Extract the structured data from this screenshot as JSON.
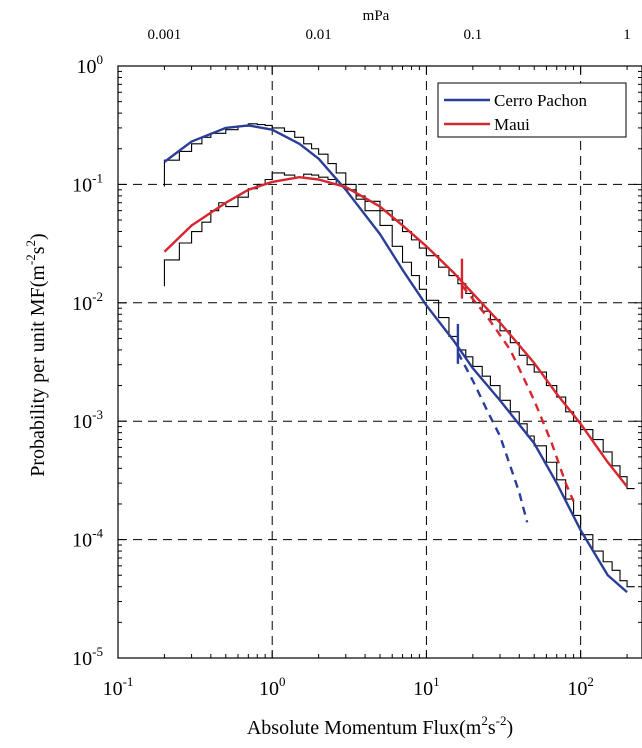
{
  "chart_data": {
    "type": "line",
    "xlabel": "Absolute Momentum Flux(m^2s^-2)",
    "ylabel": "Probability per unit MF(m^-2s^2)",
    "top_axis_label": "mPa",
    "x_scale": "log",
    "y_scale": "log",
    "xlim": [
      0.1,
      250
    ],
    "ylim": [
      1e-05,
      1
    ],
    "grid": "dashed",
    "legend_position": "top-right",
    "x_ticks": [
      {
        "value": 0.1,
        "base": "10",
        "exp": "-1"
      },
      {
        "value": 1,
        "base": "10",
        "exp": "0"
      },
      {
        "value": 10,
        "base": "10",
        "exp": "1"
      },
      {
        "value": 100,
        "base": "10",
        "exp": "2"
      }
    ],
    "y_ticks": [
      {
        "value": 1e-05,
        "base": "10",
        "exp": "-5"
      },
      {
        "value": 0.0001,
        "base": "10",
        "exp": "-4"
      },
      {
        "value": 0.001,
        "base": "10",
        "exp": "-3"
      },
      {
        "value": 0.01,
        "base": "10",
        "exp": "-2"
      },
      {
        "value": 0.1,
        "base": "10",
        "exp": "-1"
      },
      {
        "value": 1,
        "base": "10",
        "exp": "0"
      }
    ],
    "top_ticks": [
      {
        "label": "0.001",
        "value": 0.2
      },
      {
        "label": "0.01",
        "value": 2
      },
      {
        "label": "0.1",
        "value": 20
      },
      {
        "label": "1",
        "value": 200
      }
    ],
    "series": [
      {
        "name": "Cerro Pachon",
        "color": "#2b3e97",
        "fit": [
          [
            0.2,
            0.155
          ],
          [
            0.3,
            0.23
          ],
          [
            0.5,
            0.3
          ],
          [
            0.7,
            0.315
          ],
          [
            1,
            0.29
          ],
          [
            1.5,
            0.22
          ],
          [
            2,
            0.165
          ],
          [
            3,
            0.09
          ],
          [
            5,
            0.038
          ],
          [
            7,
            0.019
          ],
          [
            10,
            0.0095
          ],
          [
            15,
            0.0048
          ],
          [
            20,
            0.0028
          ],
          [
            30,
            0.0015
          ],
          [
            50,
            0.00065
          ],
          [
            70,
            0.0003
          ],
          [
            100,
            0.00012
          ],
          [
            150,
            5e-05
          ],
          [
            200,
            3.6e-05
          ]
        ],
        "dashed_extension": [
          [
            16,
            0.0038
          ],
          [
            20,
            0.0022
          ],
          [
            25,
            0.0012
          ],
          [
            30,
            0.00075
          ],
          [
            40,
            0.00025
          ],
          [
            45,
            0.00014
          ]
        ],
        "marker": [
          16,
          0.0045
        ],
        "histogram": [
          [
            0.2,
            0.16
          ],
          [
            0.25,
            0.19
          ],
          [
            0.3,
            0.22
          ],
          [
            0.35,
            0.25
          ],
          [
            0.4,
            0.27
          ],
          [
            0.5,
            0.29
          ],
          [
            0.6,
            0.31
          ],
          [
            0.7,
            0.325
          ],
          [
            0.8,
            0.32
          ],
          [
            0.9,
            0.315
          ],
          [
            1,
            0.3
          ],
          [
            1.2,
            0.28
          ],
          [
            1.4,
            0.25
          ],
          [
            1.6,
            0.22
          ],
          [
            1.8,
            0.2
          ],
          [
            2,
            0.18
          ],
          [
            2.3,
            0.15
          ],
          [
            2.6,
            0.125
          ],
          [
            3,
            0.1
          ],
          [
            3.5,
            0.075
          ],
          [
            4,
            0.06
          ],
          [
            5,
            0.045
          ],
          [
            6,
            0.03
          ],
          [
            7,
            0.022
          ],
          [
            8,
            0.017
          ],
          [
            9,
            0.013
          ],
          [
            10,
            0.0105
          ],
          [
            12,
            0.0075
          ],
          [
            14,
            0.0052
          ],
          [
            16,
            0.004
          ],
          [
            18,
            0.0035
          ],
          [
            20,
            0.0029
          ],
          [
            23,
            0.0024
          ],
          [
            26,
            0.002
          ],
          [
            30,
            0.0015
          ],
          [
            35,
            0.0012
          ],
          [
            40,
            0.00095
          ],
          [
            45,
            0.00075
          ],
          [
            50,
            0.00062
          ],
          [
            60,
            0.00045
          ],
          [
            70,
            0.00032
          ],
          [
            80,
            0.00022
          ],
          [
            90,
            0.00016
          ],
          [
            100,
            0.00011
          ],
          [
            120,
            8e-05
          ],
          [
            140,
            6.5e-05
          ],
          [
            160,
            5.5e-05
          ],
          [
            180,
            4.5e-05
          ],
          [
            200,
            4e-05
          ]
        ]
      },
      {
        "name": "Maui",
        "color": "#d7262f",
        "fit": [
          [
            0.2,
            0.027
          ],
          [
            0.3,
            0.045
          ],
          [
            0.5,
            0.07
          ],
          [
            0.7,
            0.09
          ],
          [
            1,
            0.105
          ],
          [
            1.5,
            0.115
          ],
          [
            2,
            0.11
          ],
          [
            3,
            0.095
          ],
          [
            5,
            0.065
          ],
          [
            7,
            0.045
          ],
          [
            10,
            0.03
          ],
          [
            15,
            0.018
          ],
          [
            20,
            0.012
          ],
          [
            30,
            0.0068
          ],
          [
            50,
            0.0031
          ],
          [
            70,
            0.0017
          ],
          [
            100,
            0.00095
          ],
          [
            150,
            0.00045
          ],
          [
            200,
            0.00028
          ]
        ],
        "dashed_extension": [
          [
            17,
            0.014
          ],
          [
            25,
            0.0075
          ],
          [
            35,
            0.004
          ],
          [
            50,
            0.0015
          ],
          [
            65,
            0.00065
          ],
          [
            80,
            0.0003
          ],
          [
            90,
            0.00021
          ]
        ],
        "marker": [
          17,
          0.016
        ],
        "histogram": [
          [
            0.2,
            0.023
          ],
          [
            0.25,
            0.032
          ],
          [
            0.3,
            0.04
          ],
          [
            0.35,
            0.048
          ],
          [
            0.4,
            0.06
          ],
          [
            0.45,
            0.07
          ],
          [
            0.5,
            0.065
          ],
          [
            0.6,
            0.078
          ],
          [
            0.7,
            0.092
          ],
          [
            0.8,
            0.1
          ],
          [
            0.9,
            0.11
          ],
          [
            1,
            0.125
          ],
          [
            1.2,
            0.12
          ],
          [
            1.4,
            0.115
          ],
          [
            1.6,
            0.122
          ],
          [
            1.8,
            0.12
          ],
          [
            2,
            0.115
          ],
          [
            2.3,
            0.11
          ],
          [
            2.6,
            0.1
          ],
          [
            3,
            0.09
          ],
          [
            3.5,
            0.08
          ],
          [
            4,
            0.072
          ],
          [
            5,
            0.06
          ],
          [
            6,
            0.05
          ],
          [
            7,
            0.04
          ],
          [
            8,
            0.034
          ],
          [
            9,
            0.029
          ],
          [
            10,
            0.025
          ],
          [
            12,
            0.02
          ],
          [
            14,
            0.017
          ],
          [
            16,
            0.0145
          ],
          [
            18,
            0.012
          ],
          [
            20,
            0.01
          ],
          [
            23,
            0.0085
          ],
          [
            26,
            0.0072
          ],
          [
            30,
            0.0058
          ],
          [
            35,
            0.0046
          ],
          [
            40,
            0.0036
          ],
          [
            45,
            0.003
          ],
          [
            50,
            0.0026
          ],
          [
            60,
            0.002
          ],
          [
            70,
            0.0016
          ],
          [
            80,
            0.0012
          ],
          [
            90,
            0.001
          ],
          [
            100,
            0.00085
          ],
          [
            120,
            0.0007
          ],
          [
            140,
            0.00055
          ],
          [
            160,
            0.00042
          ],
          [
            180,
            0.00034
          ],
          [
            200,
            0.00027
          ]
        ]
      }
    ]
  }
}
